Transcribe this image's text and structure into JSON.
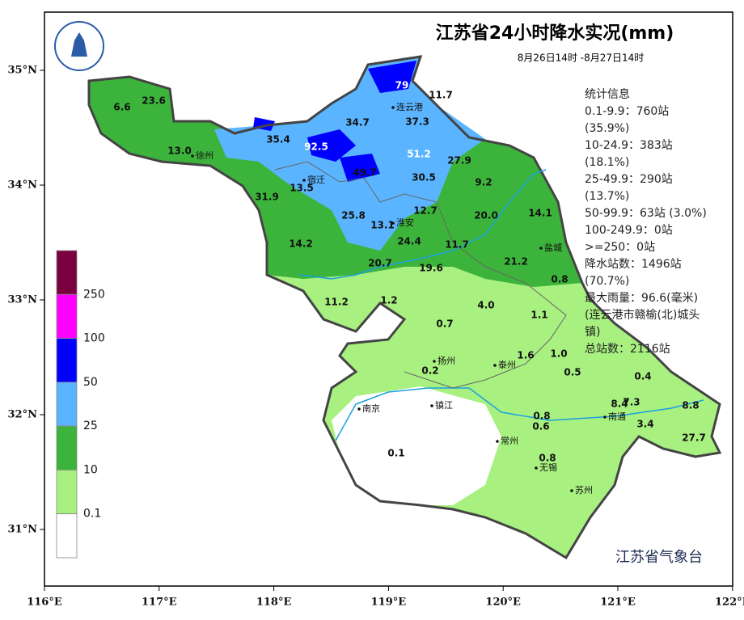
{
  "title": "江苏省24小时降水实况(mm)",
  "subtitle": "8月26日14时 -8月27日14时",
  "stats": [
    "统计信息",
    "0.1-9.9：760站",
    "(35.9%)",
    "10-24.9：383站",
    "(18.1%)",
    "25-49.9：290站",
    "(13.7%)",
    "50-99.9：63站 (3.0%)",
    "100-249.9：0站",
    ">=250：0站",
    "降水站数：1496站",
    "(70.7%)",
    "最大雨量：96.6(毫米)",
    "(连云港市赣榆(北)城头",
    "镇)",
    "总站数：2116站"
  ],
  "legend": {
    "labels": [
      "250",
      "100",
      "50",
      "25",
      "10",
      "0.1"
    ],
    "colors": [
      "#7b0040",
      "#ff00ff",
      "#0000ff",
      "#5ab4ff",
      "#3cb43c",
      "#a8f080",
      "#ffffff"
    ]
  },
  "lon_ticks": [
    "116°E",
    "117°E",
    "118°E",
    "119°E",
    "120°E",
    "121°E",
    "122°E"
  ],
  "lat_ticks": [
    "35°N",
    "34°N",
    "33°N",
    "32°N",
    "31°N"
  ],
  "cities": [
    "连云港",
    "徐州",
    "宿迁",
    "淮安",
    "盐城",
    "扬州",
    "泰州",
    "南京",
    "镇江",
    "南通",
    "常州",
    "无锡",
    "苏州"
  ],
  "stations": [
    "79",
    "11.7",
    "6.6",
    "23.6",
    "34.7",
    "37.3",
    "35.4",
    "92.5",
    "51.2",
    "13.0",
    "27.9",
    "49.7",
    "30.5",
    "9.2",
    "13.5",
    "31.9",
    "12.7",
    "25.8",
    "20.0",
    "14.1",
    "13.1",
    "24.4",
    "14.2",
    "11.7",
    "20.7",
    "19.6",
    "21.2",
    "0.8",
    "11.2",
    "1.2",
    "4.0",
    "1.1",
    "0.7",
    "1.6",
    "1.0",
    "0.2",
    "0.5",
    "0.4",
    "8.4",
    "7.3",
    "8.8",
    "0.8",
    "0.6",
    "3.4",
    "27.7",
    "0.1",
    "0.8"
  ],
  "agency": "江苏省气象台"
}
